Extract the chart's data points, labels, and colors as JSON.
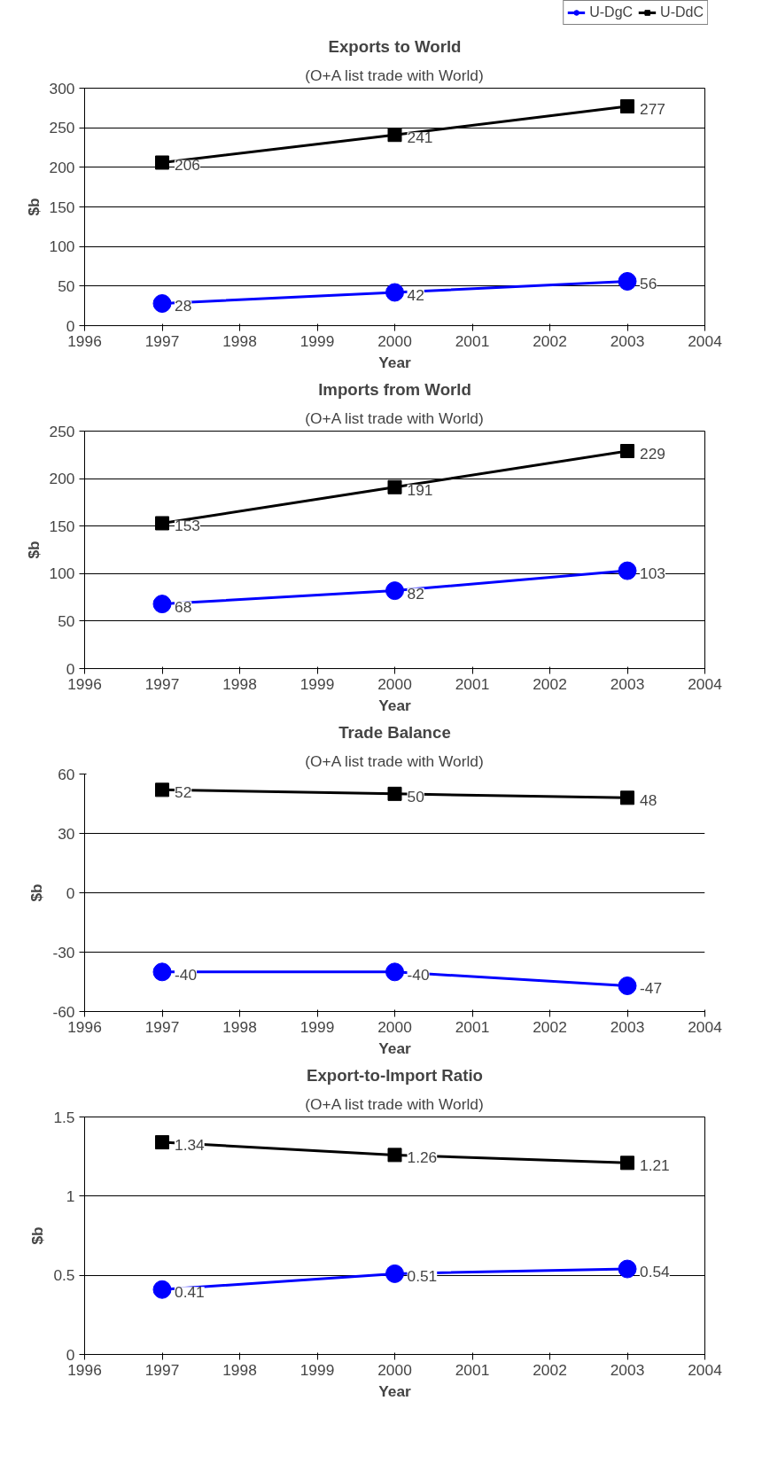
{
  "chart_data": [
    {
      "type": "line",
      "title": "Exports to World",
      "subtitle": "(O+A list trade with World)",
      "xlabel": "Year",
      "ylabel": "$b",
      "x": [
        1997,
        2000,
        2003
      ],
      "xlim": [
        1996,
        2004
      ],
      "xticks": [
        1996,
        1997,
        1998,
        1999,
        2000,
        2001,
        2002,
        2003,
        2004
      ],
      "ylim": [
        0,
        300
      ],
      "yticks": [
        0,
        50,
        100,
        150,
        200,
        250,
        300
      ],
      "grid": "y",
      "legend": "top right",
      "data_labels": true,
      "series": [
        {
          "name": "U-DgC",
          "color": "#0000ff",
          "marker": "circle",
          "values": [
            28,
            42,
            56
          ]
        },
        {
          "name": "U-DdC",
          "color": "#000000",
          "marker": "square",
          "values": [
            206,
            241,
            277
          ]
        }
      ]
    },
    {
      "type": "line",
      "title": "Imports from World",
      "subtitle": "(O+A list trade with World)",
      "xlabel": "Year",
      "ylabel": "$b",
      "x": [
        1997,
        2000,
        2003
      ],
      "xlim": [
        1996,
        2004
      ],
      "xticks": [
        1996,
        1997,
        1998,
        1999,
        2000,
        2001,
        2002,
        2003,
        2004
      ],
      "ylim": [
        0,
        250
      ],
      "yticks": [
        0,
        50,
        100,
        150,
        200,
        250
      ],
      "grid": "y",
      "data_labels": true,
      "series": [
        {
          "color": "#0000ff",
          "marker": "circle",
          "values": [
            68,
            82,
            103
          ]
        },
        {
          "color": "#000000",
          "marker": "square",
          "values": [
            153,
            191,
            229
          ]
        }
      ]
    },
    {
      "type": "line",
      "title": "Trade Balance",
      "subtitle": "(O+A list trade with World)",
      "xlabel": "Year",
      "ylabel": "$b",
      "x": [
        1997,
        2000,
        2003
      ],
      "xlim": [
        1996,
        2004
      ],
      "xticks": [
        1996,
        1997,
        1998,
        1999,
        2000,
        2001,
        2002,
        2003,
        2004
      ],
      "ylim": [
        -60,
        60
      ],
      "yticks": [
        -60,
        -30,
        0,
        30,
        60
      ],
      "grid": "y",
      "data_labels": true,
      "series": [
        {
          "color": "#0000ff",
          "marker": "circle",
          "values": [
            -40,
            -40,
            -47
          ]
        },
        {
          "color": "#000000",
          "marker": "square",
          "values": [
            52,
            50,
            48
          ]
        }
      ]
    },
    {
      "type": "line",
      "title": "Export-to-Import Ratio",
      "subtitle": "(O+A list trade with World)",
      "xlabel": "Year",
      "ylabel": "$b",
      "x": [
        1997,
        2000,
        2003
      ],
      "xlim": [
        1996,
        2004
      ],
      "xticks": [
        1996,
        1997,
        1998,
        1999,
        2000,
        2001,
        2002,
        2003,
        2004
      ],
      "ylim": [
        0,
        1.5
      ],
      "yticks": [
        0,
        0.5,
        1,
        1.5
      ],
      "grid": "y",
      "data_labels": true,
      "series": [
        {
          "color": "#0000ff",
          "marker": "circle",
          "values": [
            0.41,
            0.51,
            0.54
          ]
        },
        {
          "color": "#000000",
          "marker": "square",
          "values": [
            1.34,
            1.26,
            1.21
          ]
        }
      ]
    }
  ]
}
